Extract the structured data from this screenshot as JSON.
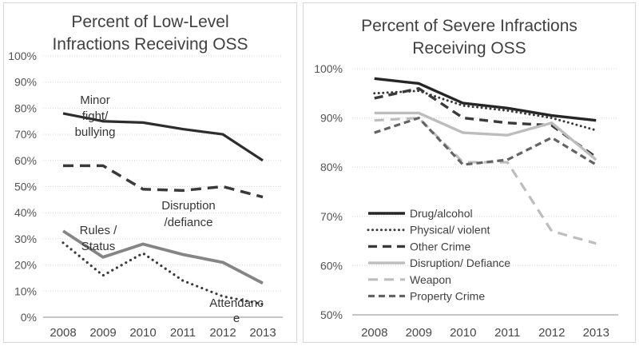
{
  "figure": {
    "background": "#ffffff",
    "grid_color": "#d9d9d9",
    "axis_color": "#b3b3b3",
    "text_color": "#404040"
  },
  "chart_data": [
    {
      "type": "line",
      "title": "Percent of Low-Level Infractions Receiving OSS",
      "title_lines": [
        "Percent of Low-Level",
        "Infractions Receiving OSS"
      ],
      "xlabel": "",
      "ylabel": "",
      "x": [
        "2008",
        "2009",
        "2010",
        "2011",
        "2012",
        "2013"
      ],
      "ylim": [
        0,
        100
      ],
      "y_tick_step": 10,
      "y_ticks": [
        "100%",
        "90%",
        "80%",
        "70%",
        "60%",
        "50%",
        "40%",
        "30%",
        "20%",
        "10%",
        "0%"
      ],
      "grid": "horizontal-dotted",
      "legend_position": "none",
      "series": [
        {
          "name": "Minor fight/bullying",
          "values": [
            78,
            75,
            74.5,
            72,
            70,
            60
          ],
          "color": "#2d2d2d",
          "style": "solid",
          "dash": "",
          "linecap": "butt",
          "width": 3.2
        },
        {
          "name": "Disruption/defiance",
          "values": [
            58,
            58,
            49,
            48.5,
            50,
            46
          ],
          "color": "#3a3a3a",
          "style": "dash",
          "dash": "13 8",
          "linecap": "butt",
          "width": 3.5
        },
        {
          "name": "Rules / Status",
          "values": [
            33,
            23,
            28,
            24,
            21,
            13
          ],
          "color": "#858585",
          "style": "solid",
          "dash": "",
          "linecap": "butt",
          "width": 3.8
        },
        {
          "name": "Attendance",
          "values": [
            28.5,
            16,
            24.5,
            14,
            8,
            5
          ],
          "color": "#3a3a3a",
          "style": "dot",
          "dash": "0 6.5",
          "linecap": "round",
          "width": 3.2
        }
      ],
      "annotations": [
        {
          "series": "Minor fight/bullying",
          "lines": [
            "Minor",
            "fight/",
            "bullying"
          ]
        },
        {
          "series": "Disruption/defiance",
          "lines": [
            "Disruption",
            "/defiance"
          ]
        },
        {
          "series": "Rules / Status",
          "lines": [
            "Rules /",
            "Status"
          ]
        },
        {
          "series": "Attendance",
          "lines": [
            "Attendanc",
            "e"
          ]
        }
      ]
    },
    {
      "type": "line",
      "title": "Percent of Severe Infractions Receiving OSS",
      "title_lines": [
        "Percent of Severe Infractions",
        "Receiving OSS"
      ],
      "xlabel": "",
      "ylabel": "",
      "x": [
        "2008",
        "2009",
        "2010",
        "2011",
        "2012",
        "2013"
      ],
      "ylim": [
        50,
        100
      ],
      "y_tick_step": 10,
      "y_ticks": [
        "100%",
        "90%",
        "80%",
        "70%",
        "60%",
        "50%"
      ],
      "grid": "horizontal-dotted",
      "legend_position": "inside-bottom-left",
      "series": [
        {
          "name": "Drug/alcohol",
          "values": [
            98,
            97,
            93,
            92,
            90.5,
            89.5
          ],
          "color": "#262626",
          "style": "solid",
          "dash": "",
          "linecap": "butt",
          "width": 3.4
        },
        {
          "name": "Physical/ violent",
          "values": [
            95,
            95.5,
            92.5,
            91.5,
            90,
            87.5
          ],
          "color": "#3a3a3a",
          "style": "dot",
          "dash": "0 5.5",
          "linecap": "round",
          "width": 3
        },
        {
          "name": "Other Crime",
          "values": [
            94,
            96,
            90,
            89,
            88.5,
            82
          ],
          "color": "#3a3a3a",
          "style": "dash",
          "dash": "11 7",
          "linecap": "butt",
          "width": 3.4
        },
        {
          "name": "Disruption/ Defiance",
          "values": [
            91,
            91,
            87,
            86.5,
            89,
            81.5
          ],
          "color": "#bdbdbd",
          "style": "solid",
          "dash": "",
          "linecap": "butt",
          "width": 3.4
        },
        {
          "name": "Weapon",
          "values": [
            89.5,
            90,
            81,
            81,
            67,
            64.5
          ],
          "color": "#bdbdbd",
          "style": "dash",
          "dash": "12 8",
          "linecap": "butt",
          "width": 3.2
        },
        {
          "name": "Property Crime",
          "values": [
            87,
            90,
            80.5,
            81.5,
            86,
            80.5
          ],
          "color": "#636363",
          "style": "dash",
          "dash": "8 5",
          "linecap": "butt",
          "width": 3.2
        }
      ],
      "annotations": []
    }
  ]
}
